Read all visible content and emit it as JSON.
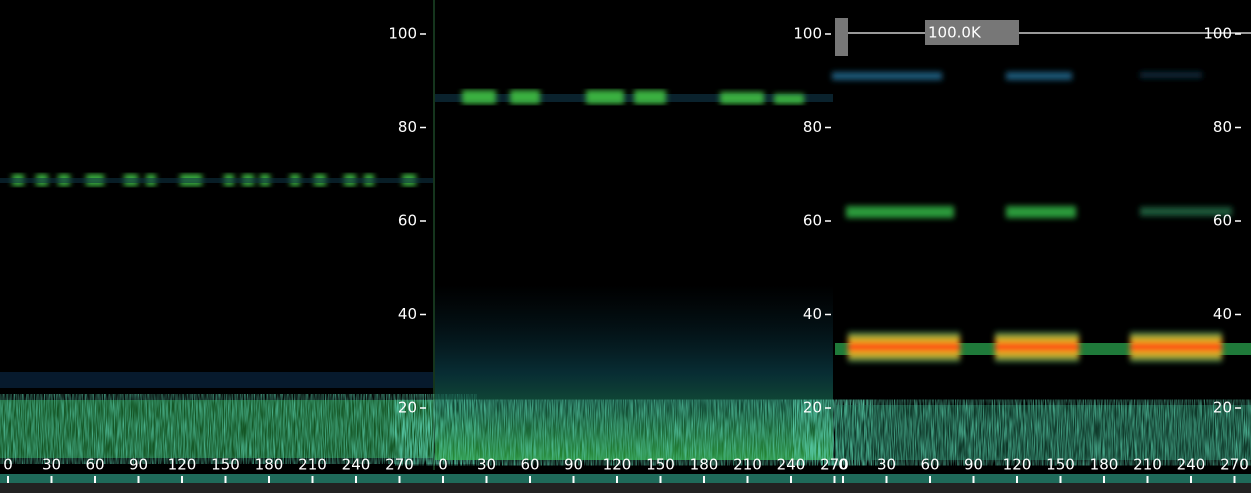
{
  "panels": [
    {
      "yticks": [
        100,
        80,
        60,
        40,
        20
      ],
      "xticks": [
        0,
        30,
        60,
        90,
        120,
        150,
        180,
        210,
        240,
        270
      ]
    },
    {
      "yticks": [
        100,
        80,
        60,
        40,
        20
      ],
      "xticks": [
        0,
        30,
        60,
        90,
        120,
        150,
        180,
        210,
        240,
        270
      ]
    },
    {
      "yticks": [
        100,
        80,
        60,
        40,
        20
      ],
      "xticks": [
        0,
        30,
        60,
        90,
        120,
        150,
        180,
        210,
        240,
        270
      ],
      "badge": "100.0K"
    }
  ]
}
